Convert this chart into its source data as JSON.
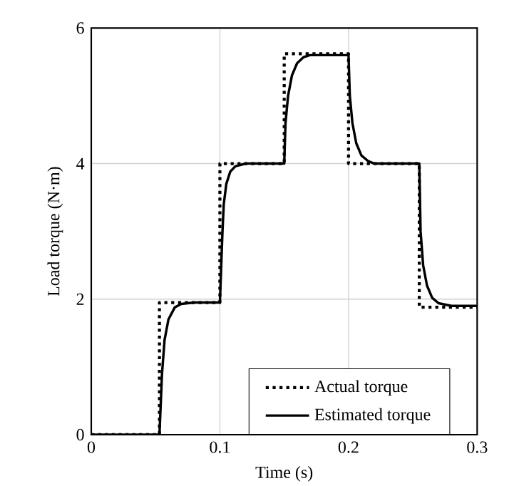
{
  "chart_data": {
    "type": "line",
    "xlabel": "Time (s)",
    "ylabel": "Load torque  (N·m)",
    "xlim": [
      0,
      0.3
    ],
    "ylim": [
      0,
      6
    ],
    "xticks": [
      0,
      0.1,
      0.2,
      0.3
    ],
    "yticks": [
      0,
      2,
      4,
      6
    ],
    "grid": true,
    "legend": "bottom",
    "series": [
      {
        "name": "Actual torque",
        "color": "#000000",
        "line_style": "dotted",
        "x": [
          0,
          0.053,
          0.053,
          0.1,
          0.1,
          0.15,
          0.15,
          0.2,
          0.2,
          0.255,
          0.255,
          0.3
        ],
        "values": [
          0,
          0,
          1.95,
          1.95,
          4.0,
          4.0,
          5.62,
          5.62,
          4.0,
          4.0,
          1.88,
          1.88
        ]
      },
      {
        "name": "Estimated torque",
        "color": "#000000",
        "line_style": "solid",
        "x": [
          0,
          0.053,
          0.055,
          0.057,
          0.06,
          0.065,
          0.07,
          0.08,
          0.1,
          0.102,
          0.103,
          0.105,
          0.108,
          0.112,
          0.12,
          0.15,
          0.151,
          0.153,
          0.156,
          0.16,
          0.165,
          0.17,
          0.2,
          0.201,
          0.203,
          0.206,
          0.21,
          0.215,
          0.22,
          0.255,
          0.256,
          0.258,
          0.261,
          0.265,
          0.27,
          0.28,
          0.3
        ],
        "values": [
          0,
          0,
          0.9,
          1.4,
          1.7,
          1.88,
          1.93,
          1.95,
          1.95,
          3.0,
          3.4,
          3.7,
          3.88,
          3.96,
          4.0,
          4.0,
          4.6,
          5.0,
          5.3,
          5.48,
          5.57,
          5.6,
          5.6,
          5.0,
          4.6,
          4.3,
          4.12,
          4.04,
          4.0,
          4.0,
          3.0,
          2.5,
          2.2,
          2.02,
          1.94,
          1.9,
          1.9
        ]
      }
    ]
  }
}
